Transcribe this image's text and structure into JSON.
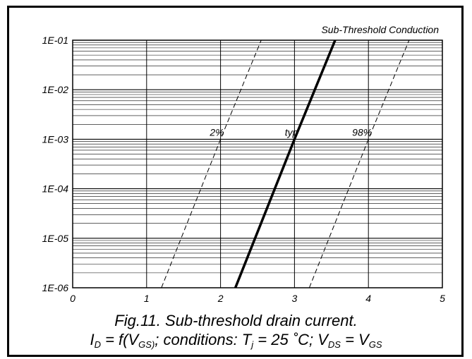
{
  "chart_data": {
    "type": "line",
    "title": "Sub-Threshold Conduction",
    "xlabel": "",
    "ylabel": "",
    "xlim": [
      0,
      5
    ],
    "ylim": [
      1e-06,
      0.1
    ],
    "yscale": "log",
    "grid": true,
    "x_ticks": [
      "0",
      "1",
      "2",
      "3",
      "4",
      "5"
    ],
    "y_ticks": [
      "1E-06",
      "1E-05",
      "1E-04",
      "1E-03",
      "1E-02",
      "1E-01"
    ],
    "series": [
      {
        "name": "2%",
        "style": "dashed",
        "x": [
          1.2,
          2.0,
          2.55
        ],
        "y": [
          1e-06,
          0.001,
          0.1
        ]
      },
      {
        "name": "typ",
        "style": "solid-thick",
        "x": [
          2.2,
          3.0,
          3.55
        ],
        "y": [
          1e-06,
          0.001,
          0.1
        ]
      },
      {
        "name": "98%",
        "style": "dashed",
        "x": [
          3.2,
          4.0,
          4.55
        ],
        "y": [
          1e-06,
          0.001,
          0.1
        ]
      }
    ]
  },
  "caption": {
    "figure": "Fig.11.   Sub-threshold drain current.",
    "formula": {
      "id": "I",
      "id_sub": "D",
      "eq_f": " = f(V",
      "vgs_sub": "GS)",
      "conditions": "; conditions: T",
      "tj_sub": "j",
      "temp": " = 25 ˚C; V",
      "vds_sub": "DS",
      "eq2": " = V",
      "vgs2_sub": "GS"
    }
  }
}
